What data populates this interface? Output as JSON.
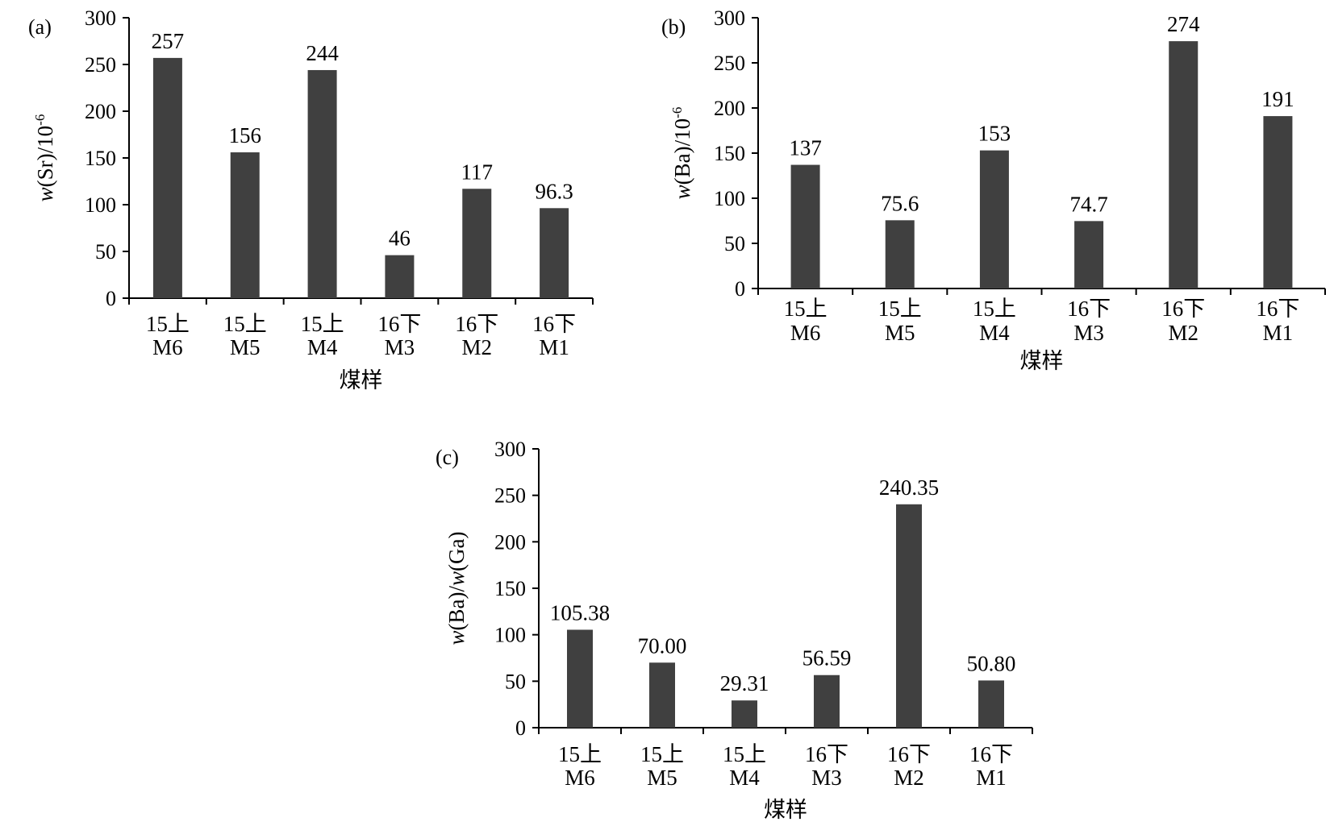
{
  "colors": {
    "bar": "#404040",
    "axis": "#000000",
    "background": "#ffffff"
  },
  "chart_data": [
    {
      "type": "bar",
      "panel": "(a)",
      "categories": [
        [
          "15上",
          "M6"
        ],
        [
          "15上",
          "M5"
        ],
        [
          "15上",
          "M4"
        ],
        [
          "16下",
          "M3"
        ],
        [
          "16下",
          "M2"
        ],
        [
          "16下",
          "M1"
        ]
      ],
      "values": [
        257,
        156,
        244,
        46,
        117,
        96.3
      ],
      "value_labels": [
        "257",
        "156",
        "244",
        "46",
        "117",
        "96.3"
      ],
      "yticks": [
        "0",
        "50",
        "100",
        "150",
        "200",
        "250",
        "300"
      ],
      "ylim": [
        0,
        300
      ],
      "ylabel_italic": "w",
      "ylabel_rest": "(Sr)/10",
      "ylabel_sup": "-6",
      "xlabel": "煤样",
      "grid": false
    },
    {
      "type": "bar",
      "panel": "(b)",
      "categories": [
        [
          "15上",
          "M6"
        ],
        [
          "15上",
          "M5"
        ],
        [
          "15上",
          "M4"
        ],
        [
          "16下",
          "M3"
        ],
        [
          "16下",
          "M2"
        ],
        [
          "16下",
          "M1"
        ]
      ],
      "values": [
        137,
        75.6,
        153,
        74.7,
        274,
        191
      ],
      "value_labels": [
        "137",
        "75.6",
        "153",
        "74.7",
        "274",
        "191"
      ],
      "yticks": [
        "0",
        "50",
        "100",
        "150",
        "200",
        "250",
        "300"
      ],
      "ylim": [
        0,
        300
      ],
      "ylabel_italic": "w",
      "ylabel_rest": "(Ba)/10",
      "ylabel_sup": "-6",
      "xlabel": "煤样",
      "grid": false
    },
    {
      "type": "bar",
      "panel": "(c)",
      "categories": [
        [
          "15上",
          "M6"
        ],
        [
          "15上",
          "M5"
        ],
        [
          "15上",
          "M4"
        ],
        [
          "16下",
          "M3"
        ],
        [
          "16下",
          "M2"
        ],
        [
          "16下",
          "M1"
        ]
      ],
      "values": [
        105.38,
        70.0,
        29.31,
        56.59,
        240.35,
        50.8
      ],
      "value_labels": [
        "105.38",
        "70.00",
        "29.31",
        "56.59",
        "240.35",
        "50.80"
      ],
      "yticks": [
        "0",
        "50",
        "100",
        "150",
        "200",
        "250",
        "300"
      ],
      "ylim": [
        0,
        300
      ],
      "ylabel_italic": "w",
      "ylabel_rest": "(Ba)/",
      "ylabel_italic2": "w",
      "ylabel_rest2": "(Ga)",
      "xlabel": "煤样",
      "grid": false
    }
  ]
}
